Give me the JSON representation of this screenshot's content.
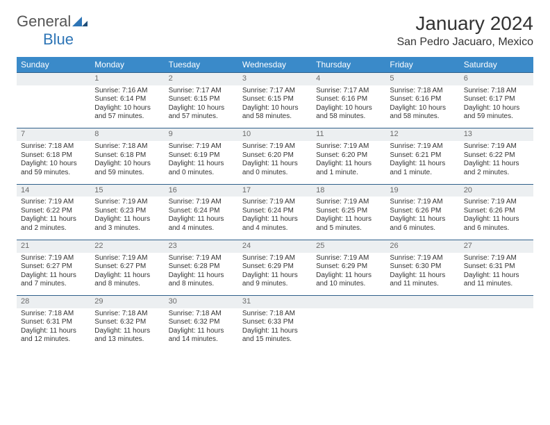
{
  "logo": {
    "word1": "General",
    "word2": "Blue"
  },
  "title": "January 2024",
  "location": "San Pedro Jacuaro, Mexico",
  "colors": {
    "header_bg": "#3a8ac9",
    "header_text": "#ffffff",
    "daynum_bg": "#eceff1",
    "daynum_border": "#2e5f8a",
    "daynum_text": "#6b6b6b",
    "body_text": "#333333",
    "logo_gray": "#555555",
    "logo_blue": "#2e75b6"
  },
  "day_headers": [
    "Sunday",
    "Monday",
    "Tuesday",
    "Wednesday",
    "Thursday",
    "Friday",
    "Saturday"
  ],
  "weeks": [
    {
      "nums": [
        "",
        "1",
        "2",
        "3",
        "4",
        "5",
        "6"
      ],
      "cells": [
        [],
        [
          "Sunrise: 7:16 AM",
          "Sunset: 6:14 PM",
          "Daylight: 10 hours",
          "and 57 minutes."
        ],
        [
          "Sunrise: 7:17 AM",
          "Sunset: 6:15 PM",
          "Daylight: 10 hours",
          "and 57 minutes."
        ],
        [
          "Sunrise: 7:17 AM",
          "Sunset: 6:15 PM",
          "Daylight: 10 hours",
          "and 58 minutes."
        ],
        [
          "Sunrise: 7:17 AM",
          "Sunset: 6:16 PM",
          "Daylight: 10 hours",
          "and 58 minutes."
        ],
        [
          "Sunrise: 7:18 AM",
          "Sunset: 6:16 PM",
          "Daylight: 10 hours",
          "and 58 minutes."
        ],
        [
          "Sunrise: 7:18 AM",
          "Sunset: 6:17 PM",
          "Daylight: 10 hours",
          "and 59 minutes."
        ]
      ]
    },
    {
      "nums": [
        "7",
        "8",
        "9",
        "10",
        "11",
        "12",
        "13"
      ],
      "cells": [
        [
          "Sunrise: 7:18 AM",
          "Sunset: 6:18 PM",
          "Daylight: 10 hours",
          "and 59 minutes."
        ],
        [
          "Sunrise: 7:18 AM",
          "Sunset: 6:18 PM",
          "Daylight: 10 hours",
          "and 59 minutes."
        ],
        [
          "Sunrise: 7:19 AM",
          "Sunset: 6:19 PM",
          "Daylight: 11 hours",
          "and 0 minutes."
        ],
        [
          "Sunrise: 7:19 AM",
          "Sunset: 6:20 PM",
          "Daylight: 11 hours",
          "and 0 minutes."
        ],
        [
          "Sunrise: 7:19 AM",
          "Sunset: 6:20 PM",
          "Daylight: 11 hours",
          "and 1 minute."
        ],
        [
          "Sunrise: 7:19 AM",
          "Sunset: 6:21 PM",
          "Daylight: 11 hours",
          "and 1 minute."
        ],
        [
          "Sunrise: 7:19 AM",
          "Sunset: 6:22 PM",
          "Daylight: 11 hours",
          "and 2 minutes."
        ]
      ]
    },
    {
      "nums": [
        "14",
        "15",
        "16",
        "17",
        "18",
        "19",
        "20"
      ],
      "cells": [
        [
          "Sunrise: 7:19 AM",
          "Sunset: 6:22 PM",
          "Daylight: 11 hours",
          "and 2 minutes."
        ],
        [
          "Sunrise: 7:19 AM",
          "Sunset: 6:23 PM",
          "Daylight: 11 hours",
          "and 3 minutes."
        ],
        [
          "Sunrise: 7:19 AM",
          "Sunset: 6:24 PM",
          "Daylight: 11 hours",
          "and 4 minutes."
        ],
        [
          "Sunrise: 7:19 AM",
          "Sunset: 6:24 PM",
          "Daylight: 11 hours",
          "and 4 minutes."
        ],
        [
          "Sunrise: 7:19 AM",
          "Sunset: 6:25 PM",
          "Daylight: 11 hours",
          "and 5 minutes."
        ],
        [
          "Sunrise: 7:19 AM",
          "Sunset: 6:26 PM",
          "Daylight: 11 hours",
          "and 6 minutes."
        ],
        [
          "Sunrise: 7:19 AM",
          "Sunset: 6:26 PM",
          "Daylight: 11 hours",
          "and 6 minutes."
        ]
      ]
    },
    {
      "nums": [
        "21",
        "22",
        "23",
        "24",
        "25",
        "26",
        "27"
      ],
      "cells": [
        [
          "Sunrise: 7:19 AM",
          "Sunset: 6:27 PM",
          "Daylight: 11 hours",
          "and 7 minutes."
        ],
        [
          "Sunrise: 7:19 AM",
          "Sunset: 6:27 PM",
          "Daylight: 11 hours",
          "and 8 minutes."
        ],
        [
          "Sunrise: 7:19 AM",
          "Sunset: 6:28 PM",
          "Daylight: 11 hours",
          "and 8 minutes."
        ],
        [
          "Sunrise: 7:19 AM",
          "Sunset: 6:29 PM",
          "Daylight: 11 hours",
          "and 9 minutes."
        ],
        [
          "Sunrise: 7:19 AM",
          "Sunset: 6:29 PM",
          "Daylight: 11 hours",
          "and 10 minutes."
        ],
        [
          "Sunrise: 7:19 AM",
          "Sunset: 6:30 PM",
          "Daylight: 11 hours",
          "and 11 minutes."
        ],
        [
          "Sunrise: 7:19 AM",
          "Sunset: 6:31 PM",
          "Daylight: 11 hours",
          "and 11 minutes."
        ]
      ]
    },
    {
      "nums": [
        "28",
        "29",
        "30",
        "31",
        "",
        "",
        ""
      ],
      "cells": [
        [
          "Sunrise: 7:18 AM",
          "Sunset: 6:31 PM",
          "Daylight: 11 hours",
          "and 12 minutes."
        ],
        [
          "Sunrise: 7:18 AM",
          "Sunset: 6:32 PM",
          "Daylight: 11 hours",
          "and 13 minutes."
        ],
        [
          "Sunrise: 7:18 AM",
          "Sunset: 6:32 PM",
          "Daylight: 11 hours",
          "and 14 minutes."
        ],
        [
          "Sunrise: 7:18 AM",
          "Sunset: 6:33 PM",
          "Daylight: 11 hours",
          "and 15 minutes."
        ],
        [],
        [],
        []
      ]
    }
  ]
}
